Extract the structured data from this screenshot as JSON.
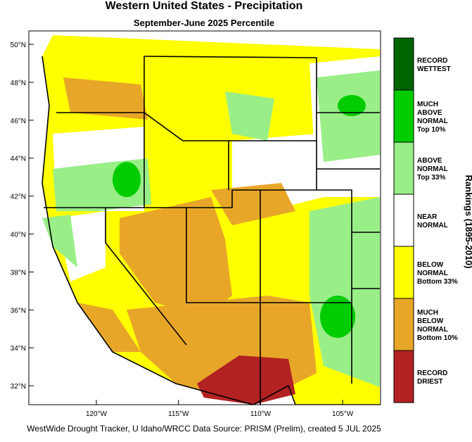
{
  "title": "Western United States - Precipitation",
  "subtitle": "September-June 2025 Percentile",
  "lat_labels": [
    "50°N",
    "48°N",
    "46°N",
    "44°N",
    "42°N",
    "40°N",
    "38°N",
    "36°N",
    "34°N",
    "32°N"
  ],
  "lon_labels": [
    "120°W",
    "115°W",
    "110°W",
    "105°W"
  ],
  "legend": {
    "title": "Rankings (1895-2010)",
    "items": [
      {
        "lines": [
          "RECORD",
          "WETTEST"
        ],
        "color": "#006400"
      },
      {
        "lines": [
          "MUCH",
          "ABOVE",
          "NORMAL",
          "Top 10%"
        ],
        "color": "#00cc00"
      },
      {
        "lines": [
          "ABOVE",
          "NORMAL",
          "Top 33%"
        ],
        "color": "#99ee88"
      },
      {
        "lines": [
          "NEAR",
          "NORMAL"
        ],
        "color": "#ffffff"
      },
      {
        "lines": [
          "BELOW",
          "NORMAL",
          "Bottom 33%"
        ],
        "color": "#ffff00"
      },
      {
        "lines": [
          "MUCH",
          "BELOW",
          "NORMAL",
          "Bottom 10%"
        ],
        "color": "#e8a628"
      },
      {
        "lines": [
          "RECORD",
          "DRIEST"
        ],
        "color": "#b22222"
      }
    ]
  },
  "footer": "WestWide Drought Tracker, U Idaho/WRCC Data Source: PRISM (Prelim), created  5 JUL 2025"
}
